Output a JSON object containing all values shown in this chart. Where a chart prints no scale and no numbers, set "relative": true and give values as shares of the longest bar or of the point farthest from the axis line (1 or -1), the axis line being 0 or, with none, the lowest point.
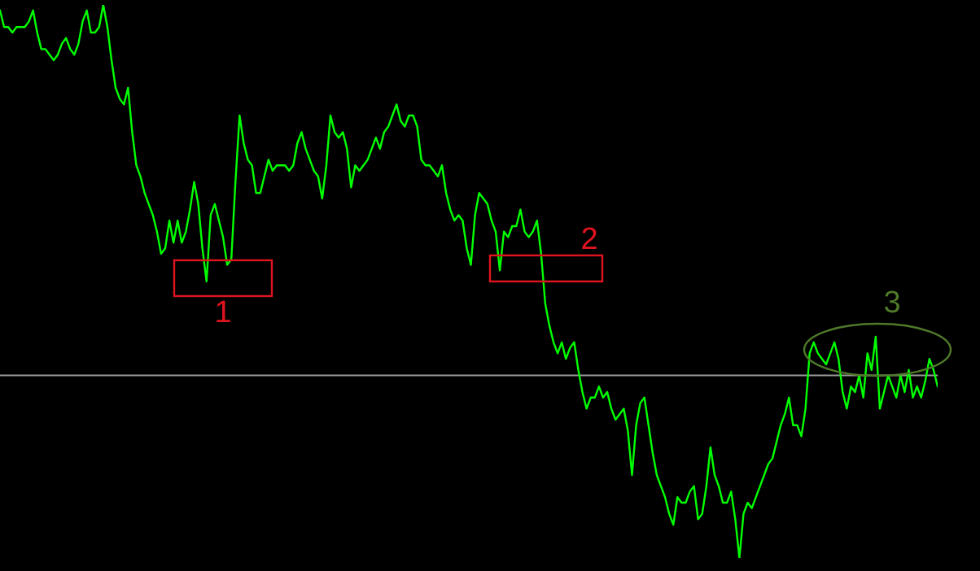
{
  "chart_data": {
    "type": "line",
    "relative": true,
    "categories": [
      null,
      null,
      null,
      null,
      null,
      null,
      null,
      null,
      null,
      null,
      null,
      null,
      null,
      null,
      null,
      null,
      null,
      null,
      null,
      null,
      null,
      null,
      null,
      null,
      null,
      null,
      null,
      null,
      null,
      null,
      null,
      null,
      null,
      null,
      null,
      null,
      null,
      null,
      null,
      null,
      null,
      null,
      null,
      null,
      null,
      null,
      null,
      null,
      null,
      null,
      null,
      null,
      null,
      null,
      null,
      null,
      null,
      null,
      null,
      null,
      null,
      null,
      null,
      null,
      null,
      null,
      null,
      null,
      null,
      null,
      null,
      null,
      null,
      null,
      null,
      null,
      null,
      null,
      null,
      null,
      null,
      null,
      null,
      null,
      null,
      null,
      null,
      null,
      null,
      null,
      null,
      null,
      null,
      null,
      null,
      null,
      null,
      null,
      null,
      null,
      null,
      null,
      null,
      null,
      null,
      null,
      null,
      null,
      null,
      null,
      null,
      null,
      null,
      null,
      null,
      null,
      null,
      null,
      null,
      null,
      null,
      null,
      null,
      null,
      null,
      null,
      null,
      null,
      null,
      null,
      null,
      null,
      null,
      null,
      null,
      null,
      null,
      null,
      null,
      null,
      null,
      null,
      null,
      null,
      null,
      null,
      null,
      null,
      null,
      null,
      null,
      null,
      null,
      null,
      null,
      null,
      null,
      null,
      null,
      null,
      null,
      null,
      null,
      null,
      null,
      null,
      null,
      null,
      null,
      null,
      null,
      null,
      null,
      null,
      null,
      null,
      null,
      null,
      null,
      null,
      null,
      null,
      null,
      null,
      null,
      null,
      null,
      null,
      null,
      null,
      null,
      null,
      null,
      null,
      null,
      null,
      null,
      null,
      null,
      null,
      null,
      null,
      null,
      null,
      null,
      null,
      null,
      null,
      null,
      null,
      null,
      null,
      null,
      null,
      null,
      null,
      null,
      null,
      null,
      null,
      null,
      null,
      null,
      null,
      null,
      null,
      null,
      null
    ],
    "series": [
      {
        "color": "#00ff00",
        "values": [
          0.99,
          0.96,
          0.96,
          0.95,
          0.96,
          0.96,
          0.96,
          0.97,
          0.99,
          0.95,
          0.92,
          0.92,
          0.91,
          0.9,
          0.91,
          0.93,
          0.94,
          0.92,
          0.91,
          0.93,
          0.97,
          0.99,
          0.95,
          0.95,
          0.96,
          1,
          0.96,
          0.9,
          0.85,
          0.83,
          0.82,
          0.85,
          0.77,
          0.71,
          0.69,
          0.66,
          0.64,
          0.62,
          0.59,
          0.55,
          0.56,
          0.61,
          0.57,
          0.61,
          0.57,
          0.59,
          0.63,
          0.68,
          0.64,
          0.56,
          0.5,
          0.62,
          0.64,
          0.61,
          0.58,
          0.53,
          0.54,
          0.68,
          0.8,
          0.75,
          0.72,
          0.71,
          0.66,
          0.66,
          0.69,
          0.72,
          0.7,
          0.71,
          0.71,
          0.71,
          0.7,
          0.71,
          0.75,
          0.77,
          0.74,
          0.72,
          0.7,
          0.69,
          0.65,
          0.71,
          0.8,
          0.77,
          0.76,
          0.77,
          0.74,
          0.67,
          0.71,
          0.7,
          0.71,
          0.72,
          0.74,
          0.76,
          0.74,
          0.77,
          0.78,
          0.8,
          0.82,
          0.79,
          0.78,
          0.8,
          0.8,
          0.78,
          0.72,
          0.71,
          0.71,
          0.7,
          0.69,
          0.71,
          0.66,
          0.63,
          0.61,
          0.62,
          0.61,
          0.56,
          0.53,
          0.62,
          0.66,
          0.65,
          0.64,
          0.61,
          0.59,
          0.52,
          0.59,
          0.58,
          0.6,
          0.6,
          0.63,
          0.59,
          0.58,
          0.59,
          0.61,
          0.55,
          0.46,
          0.42,
          0.39,
          0.37,
          0.39,
          0.36,
          0.38,
          0.39,
          0.34,
          0.3,
          0.27,
          0.29,
          0.29,
          0.31,
          0.29,
          0.3,
          0.27,
          0.25,
          0.26,
          0.27,
          0.23,
          0.15,
          0.24,
          0.28,
          0.29,
          0.24,
          0.19,
          0.15,
          0.13,
          0.11,
          0.08,
          0.06,
          0.11,
          0.1,
          0.1,
          0.12,
          0.13,
          0.07,
          0.08,
          0.13,
          0.2,
          0.15,
          0.13,
          0.1,
          0.1,
          0.12,
          0.07,
          0,
          0.08,
          0.1,
          0.09,
          0.11,
          0.13,
          0.15,
          0.17,
          0.18,
          0.21,
          0.24,
          0.26,
          0.29,
          0.24,
          0.24,
          0.22,
          0.27,
          0.37,
          0.39,
          0.37,
          0.36,
          0.35,
          0.37,
          0.39,
          0.36,
          0.3,
          0.27,
          0.31,
          0.3,
          0.33,
          0.29,
          0.37,
          0.34,
          0.4,
          0.27,
          0.3,
          0.33,
          0.31,
          0.29,
          0.33,
          0.3,
          0.34,
          0.29,
          0.31,
          0.29,
          0.32,
          0.36,
          0.34,
          0.31
        ]
      }
    ],
    "ref_lines": [
      {
        "axis": "y",
        "value": 0.33,
        "color": "#9a9a9a"
      }
    ],
    "annotations": [
      "1",
      "2",
      "3"
    ],
    "grid": false,
    "legend": false,
    "marker": "none",
    "line_style": "solid"
  }
}
